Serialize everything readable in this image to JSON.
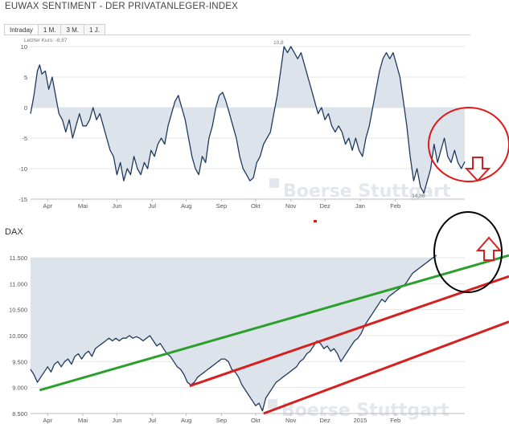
{
  "header": {
    "title": "EUWAX SENTIMENT - DER PRIVATANLEGER-INDEX"
  },
  "tabs": [
    {
      "label": "Intraday",
      "active": true
    },
    {
      "label": "1 M.",
      "active": false
    },
    {
      "label": "3 M.",
      "active": false
    },
    {
      "label": "1 J.",
      "active": false
    }
  ],
  "sentiment_panel": {
    "last_price_label": "Letzter Kurs: -8,87",
    "max_label": "10,8",
    "min_label": "-14,86",
    "watermark": "Boerse Stuttgart"
  },
  "dax_panel": {
    "label": "DAX",
    "watermark": "Boerse Stuttgart"
  },
  "colors": {
    "line": "#1f3a5f",
    "area": "#dde3ea",
    "green_channel": "#2ca02c",
    "red_channel": "#d62020",
    "arrow_red": "#d62020",
    "circle_red": "#e01818",
    "circle_black": "#000000"
  },
  "chart_data": [
    {
      "type": "area",
      "name": "EUWAX Sentiment",
      "ylim": [
        -15,
        10
      ],
      "yticks": [
        10,
        5,
        0,
        -5,
        -10,
        -15
      ],
      "ytick_labels": [
        "10",
        "5",
        "0",
        "-5",
        "-10",
        "-15"
      ],
      "xtick_labels": [
        "Apr",
        "Mai",
        "Jun",
        "Jul",
        "Aug",
        "Sep",
        "Okt",
        "Nov",
        "Dez",
        "Jan",
        "Feb"
      ],
      "x_range_days": [
        0,
        365
      ],
      "xtick_days": [
        15,
        46,
        76,
        107,
        137,
        168,
        198,
        229,
        259,
        290,
        321
      ],
      "series": [
        {
          "points": [
            [
              0,
              -1
            ],
            [
              3,
              2
            ],
            [
              6,
              6
            ],
            [
              8,
              7
            ],
            [
              10,
              5.5
            ],
            [
              13,
              6
            ],
            [
              16,
              3
            ],
            [
              19,
              5
            ],
            [
              22,
              2
            ],
            [
              25,
              -1
            ],
            [
              28,
              -2
            ],
            [
              31,
              -4
            ],
            [
              34,
              -2
            ],
            [
              37,
              -5
            ],
            [
              40,
              -3
            ],
            [
              43,
              -1
            ],
            [
              46,
              -3
            ],
            [
              49,
              -3
            ],
            [
              52,
              -2
            ],
            [
              55,
              0
            ],
            [
              58,
              -2
            ],
            [
              61,
              -1
            ],
            [
              64,
              -3
            ],
            [
              67,
              -5
            ],
            [
              70,
              -7
            ],
            [
              73,
              -8
            ],
            [
              76,
              -11
            ],
            [
              79,
              -9
            ],
            [
              82,
              -12
            ],
            [
              85,
              -10
            ],
            [
              88,
              -11
            ],
            [
              91,
              -8
            ],
            [
              94,
              -10
            ],
            [
              97,
              -11
            ],
            [
              100,
              -9
            ],
            [
              103,
              -10
            ],
            [
              106,
              -7
            ],
            [
              109,
              -8
            ],
            [
              112,
              -6
            ],
            [
              115,
              -5
            ],
            [
              118,
              -6
            ],
            [
              121,
              -3
            ],
            [
              124,
              -1
            ],
            [
              127,
              1
            ],
            [
              130,
              2
            ],
            [
              133,
              0
            ],
            [
              136,
              -2
            ],
            [
              139,
              -5
            ],
            [
              142,
              -8
            ],
            [
              145,
              -10
            ],
            [
              148,
              -11
            ],
            [
              151,
              -8
            ],
            [
              154,
              -9
            ],
            [
              157,
              -5
            ],
            [
              160,
              -3
            ],
            [
              163,
              0
            ],
            [
              166,
              2
            ],
            [
              169,
              2.5
            ],
            [
              172,
              1
            ],
            [
              175,
              -1
            ],
            [
              178,
              -3
            ],
            [
              181,
              -5
            ],
            [
              184,
              -8
            ],
            [
              187,
              -10
            ],
            [
              190,
              -11
            ],
            [
              193,
              -12
            ],
            [
              196,
              -11.5
            ],
            [
              199,
              -9
            ],
            [
              202,
              -8
            ],
            [
              205,
              -6
            ],
            [
              208,
              -5
            ],
            [
              211,
              -4
            ],
            [
              214,
              -1
            ],
            [
              217,
              2
            ],
            [
              220,
              6
            ],
            [
              223,
              10
            ],
            [
              226,
              9
            ],
            [
              229,
              10
            ],
            [
              232,
              9
            ],
            [
              235,
              8
            ],
            [
              238,
              9
            ],
            [
              241,
              7
            ],
            [
              244,
              5
            ],
            [
              247,
              3
            ],
            [
              250,
              1
            ],
            [
              253,
              -1
            ],
            [
              256,
              0
            ],
            [
              259,
              -2
            ],
            [
              262,
              -1
            ],
            [
              265,
              -3
            ],
            [
              268,
              -4
            ],
            [
              271,
              -3
            ],
            [
              274,
              -4
            ],
            [
              277,
              -6
            ],
            [
              280,
              -5
            ],
            [
              283,
              -7
            ],
            [
              286,
              -5
            ],
            [
              289,
              -7
            ],
            [
              292,
              -8
            ],
            [
              295,
              -5
            ],
            [
              298,
              -3
            ],
            [
              301,
              0
            ],
            [
              304,
              3
            ],
            [
              307,
              6
            ],
            [
              310,
              8
            ],
            [
              313,
              9
            ],
            [
              316,
              8
            ],
            [
              319,
              9
            ],
            [
              322,
              7
            ],
            [
              325,
              5
            ],
            [
              328,
              1
            ],
            [
              331,
              -3
            ],
            [
              334,
              -8
            ],
            [
              337,
              -12
            ],
            [
              340,
              -10
            ],
            [
              343,
              -13
            ],
            [
              346,
              -14
            ],
            [
              349,
              -12
            ],
            [
              352,
              -10
            ],
            [
              355,
              -6
            ],
            [
              358,
              -9
            ],
            [
              361,
              -7
            ],
            [
              364,
              -5
            ],
            [
              367,
              -8
            ],
            [
              370,
              -9
            ],
            [
              373,
              -7
            ],
            [
              376,
              -9
            ],
            [
              379,
              -10
            ],
            [
              382,
              -8.87
            ]
          ]
        }
      ]
    },
    {
      "type": "area",
      "name": "DAX",
      "ylim": [
        8500,
        11500
      ],
      "yticks": [
        11500,
        11000,
        10500,
        10000,
        9500,
        9000,
        8500
      ],
      "ytick_labels": [
        "11.500",
        "11.000",
        "10.500",
        "10.000",
        "9.500",
        "9.000",
        "8.500"
      ],
      "xtick_labels": [
        "Apr",
        "Mai",
        "Jun",
        "Jul",
        "Aug",
        "Sep",
        "Okt",
        "Nov",
        "Dez",
        "2015",
        "Feb"
      ],
      "series": [
        {
          "points": [
            [
              0,
              9350
            ],
            [
              3,
              9250
            ],
            [
              6,
              9100
            ],
            [
              9,
              9200
            ],
            [
              12,
              9300
            ],
            [
              15,
              9400
            ],
            [
              18,
              9300
            ],
            [
              21,
              9450
            ],
            [
              24,
              9500
            ],
            [
              27,
              9400
            ],
            [
              30,
              9500
            ],
            [
              33,
              9550
            ],
            [
              36,
              9450
            ],
            [
              39,
              9600
            ],
            [
              42,
              9650
            ],
            [
              45,
              9550
            ],
            [
              48,
              9650
            ],
            [
              51,
              9700
            ],
            [
              54,
              9600
            ],
            [
              57,
              9750
            ],
            [
              60,
              9800
            ],
            [
              63,
              9850
            ],
            [
              66,
              9900
            ],
            [
              69,
              9950
            ],
            [
              72,
              9900
            ],
            [
              75,
              9950
            ],
            [
              78,
              9900
            ],
            [
              81,
              9950
            ],
            [
              84,
              9950
            ],
            [
              87,
              10000
            ],
            [
              90,
              9950
            ],
            [
              93,
              9980
            ],
            [
              96,
              9950
            ],
            [
              99,
              9900
            ],
            [
              102,
              9950
            ],
            [
              105,
              10000
            ],
            [
              108,
              9900
            ],
            [
              111,
              9800
            ],
            [
              114,
              9850
            ],
            [
              117,
              9750
            ],
            [
              120,
              9650
            ],
            [
              123,
              9600
            ],
            [
              126,
              9500
            ],
            [
              129,
              9400
            ],
            [
              132,
              9350
            ],
            [
              135,
              9250
            ],
            [
              138,
              9100
            ],
            [
              141,
              9050
            ],
            [
              144,
              9100
            ],
            [
              147,
              9200
            ],
            [
              150,
              9250
            ],
            [
              153,
              9300
            ],
            [
              156,
              9350
            ],
            [
              159,
              9400
            ],
            [
              162,
              9450
            ],
            [
              165,
              9500
            ],
            [
              168,
              9550
            ],
            [
              171,
              9550
            ],
            [
              174,
              9500
            ],
            [
              177,
              9350
            ],
            [
              180,
              9300
            ],
            [
              183,
              9200
            ],
            [
              186,
              9050
            ],
            [
              189,
              8950
            ],
            [
              192,
              8850
            ],
            [
              195,
              8750
            ],
            [
              198,
              8650
            ],
            [
              201,
              8700
            ],
            [
              204,
              8550
            ],
            [
              207,
              8800
            ],
            [
              210,
              8900
            ],
            [
              213,
              9000
            ],
            [
              216,
              9100
            ],
            [
              219,
              9150
            ],
            [
              222,
              9200
            ],
            [
              225,
              9250
            ],
            [
              228,
              9300
            ],
            [
              231,
              9350
            ],
            [
              234,
              9400
            ],
            [
              237,
              9500
            ],
            [
              240,
              9550
            ],
            [
              243,
              9650
            ],
            [
              246,
              9700
            ],
            [
              249,
              9800
            ],
            [
              252,
              9900
            ],
            [
              255,
              9850
            ],
            [
              258,
              9750
            ],
            [
              261,
              9800
            ],
            [
              264,
              9700
            ],
            [
              267,
              9750
            ],
            [
              270,
              9650
            ],
            [
              273,
              9500
            ],
            [
              276,
              9600
            ],
            [
              279,
              9700
            ],
            [
              282,
              9800
            ],
            [
              285,
              9900
            ],
            [
              288,
              9950
            ],
            [
              291,
              10050
            ],
            [
              294,
              10200
            ],
            [
              297,
              10300
            ],
            [
              300,
              10400
            ],
            [
              303,
              10500
            ],
            [
              306,
              10600
            ],
            [
              309,
              10700
            ],
            [
              312,
              10650
            ],
            [
              315,
              10750
            ],
            [
              318,
              10800
            ],
            [
              321,
              10850
            ],
            [
              324,
              10900
            ],
            [
              327,
              10950
            ],
            [
              330,
              11000
            ],
            [
              333,
              11100
            ],
            [
              336,
              11200
            ],
            [
              339,
              11250
            ],
            [
              342,
              11300
            ],
            [
              345,
              11350
            ],
            [
              348,
              11400
            ],
            [
              351,
              11450
            ],
            [
              354,
              11500
            ],
            [
              357,
              11550
            ]
          ]
        }
      ]
    }
  ]
}
